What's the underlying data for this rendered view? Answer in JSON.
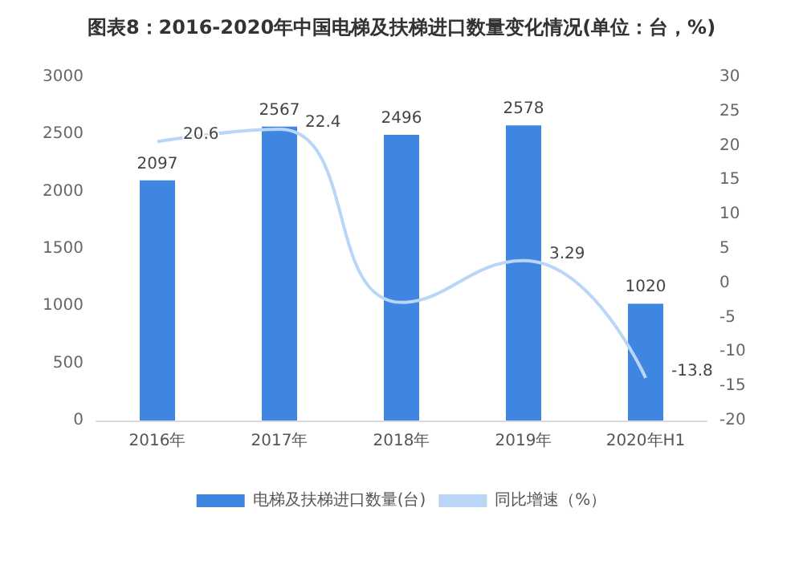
{
  "chart_data": {
    "type": "bar",
    "title": "图表8：2016-2020年中国电梯及扶梯进口数量变化情况(单位：台，%)",
    "categories": [
      "2016年",
      "2017年",
      "2018年",
      "2019年",
      "2020年H1"
    ],
    "series": [
      {
        "name": "电梯及扶梯进口数量(台)",
        "color": "#3f86e0",
        "values": [
          2097,
          2567,
          2496,
          2578,
          1020
        ],
        "value_labels": [
          "2097",
          "2567",
          "2496",
          "2578",
          "1020"
        ]
      },
      {
        "name": "同比增速（%）",
        "type": "line",
        "axis": "y2",
        "color": "#b9d6f7",
        "values": [
          20.6,
          22.4,
          -2.8,
          3.29,
          -13.8
        ],
        "value_labels": [
          "20.6",
          "22.4",
          null,
          "3.29",
          "-13.8"
        ]
      }
    ],
    "ylim": [
      0,
      3000
    ],
    "yticks": [
      0,
      500,
      1000,
      1500,
      2000,
      2500,
      3000
    ],
    "y2lim": [
      -20,
      30
    ],
    "y2ticks": [
      -20,
      -15,
      -10,
      -5,
      0,
      5,
      10,
      15,
      20,
      25,
      30
    ],
    "grid": false,
    "legend": "bottom",
    "marker": "none"
  }
}
